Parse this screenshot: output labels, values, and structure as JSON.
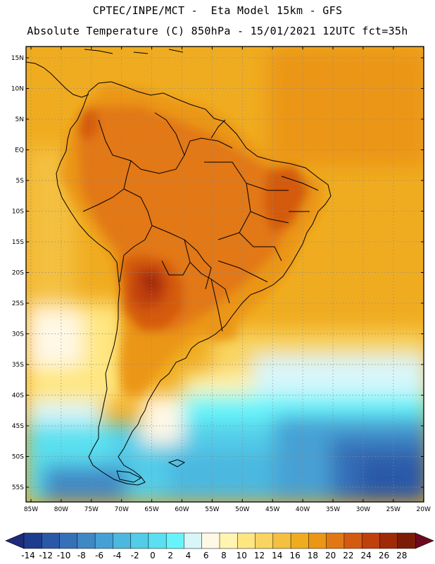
{
  "header": {
    "line1": "CPTEC/INPE/MCT -  Eta Model 15km - GFS",
    "line2": "Absolute Temperature (C) 850hPa - 15/01/2021 12UTC fct=35h"
  },
  "map": {
    "lat_labels": [
      "15N",
      "10N",
      "5N",
      "EQ",
      "5S",
      "10S",
      "15S",
      "20S",
      "25S",
      "30S",
      "35S",
      "40S",
      "45S",
      "50S",
      "55S"
    ],
    "lon_labels": [
      "85W",
      "80W",
      "75W",
      "70W",
      "65W",
      "60W",
      "55W",
      "50W",
      "45W",
      "40W",
      "35W",
      "30W",
      "25W",
      "20W"
    ]
  },
  "colorbar": {
    "labels": [
      "-14",
      "-12",
      "-10",
      "-8",
      "-6",
      "-4",
      "-2",
      "0",
      "2",
      "4",
      "6",
      "8",
      "10",
      "12",
      "14",
      "16",
      "18",
      "20",
      "22",
      "24",
      "26",
      "28"
    ],
    "colors": [
      "#1e3c8c",
      "#2a58a8",
      "#3670b8",
      "#3f88c6",
      "#46a0d4",
      "#4cb8e0",
      "#52cce8",
      "#5ae0f0",
      "#66f4fa",
      "#d8f6fa",
      "#fff8e6",
      "#fff4b0",
      "#ffe680",
      "#f8d460",
      "#f4c040",
      "#f0ac20",
      "#eb9614",
      "#e27814",
      "#d45a10",
      "#c0400c",
      "#a02a08",
      "#7c1c08"
    ],
    "under_color": "#1e2a7a",
    "over_color": "#6e0a20"
  }
}
